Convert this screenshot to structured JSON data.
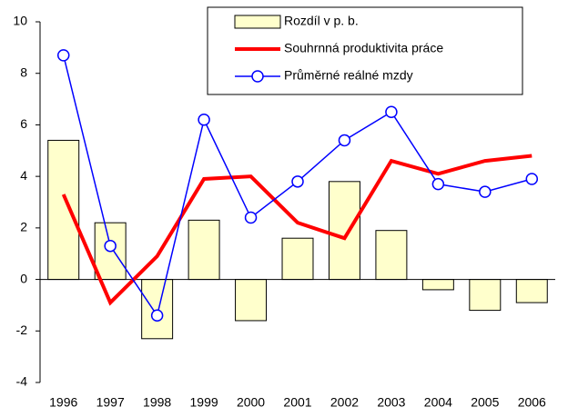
{
  "chart_data": {
    "type": "bar",
    "categories": [
      "1996",
      "1997",
      "1998",
      "1999",
      "2000",
      "2001",
      "2002",
      "2003",
      "2004",
      "2005",
      "2006"
    ],
    "series": [
      {
        "name": "Rozdíl v p. b.",
        "type": "bar",
        "color": "#ffffcc",
        "values": [
          5.4,
          2.2,
          -2.3,
          2.3,
          -1.6,
          1.6,
          3.8,
          1.9,
          -0.4,
          -1.2,
          -0.9
        ]
      },
      {
        "name": "Souhrnná produktivita práce",
        "type": "line",
        "color": "#ff0000",
        "values": [
          3.3,
          -0.9,
          0.9,
          3.9,
          4.0,
          2.2,
          1.6,
          4.6,
          4.1,
          4.6,
          4.8
        ]
      },
      {
        "name": "Průměrné reálné mzdy",
        "type": "line",
        "color": "#0000ff",
        "marker": "circle",
        "values": [
          8.7,
          1.3,
          -1.4,
          6.2,
          2.4,
          3.8,
          5.4,
          6.5,
          3.7,
          3.4,
          3.9
        ]
      }
    ],
    "ylim": [
      -4,
      10
    ],
    "yticks": [
      -4,
      -2,
      0,
      2,
      4,
      6,
      8,
      10
    ],
    "legend": "top-right"
  }
}
